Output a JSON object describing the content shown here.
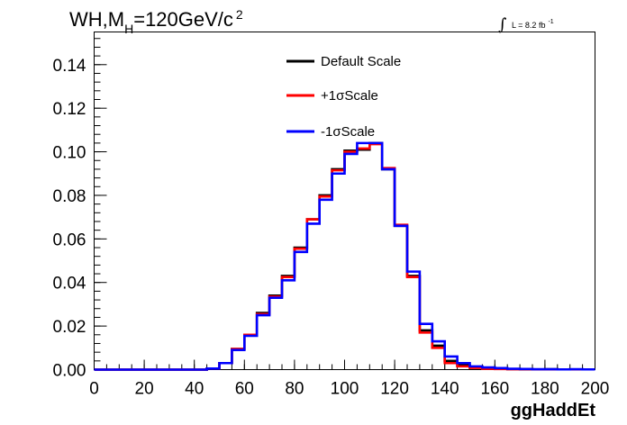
{
  "chart_data": {
    "type": "line",
    "title": {
      "main": "WH,M",
      "sub": "H",
      "rest": "=120GeV/c",
      "sup": "2"
    },
    "lumi": {
      "integral": "∫",
      "label": "L = 8.2 fb",
      "sup": "-1"
    },
    "xlabel": "ggHaddEt",
    "ylabel": "",
    "xlim": [
      0,
      200
    ],
    "ylim": [
      0,
      0.155
    ],
    "xticks": [
      "0",
      "20",
      "40",
      "60",
      "80",
      "100",
      "120",
      "140",
      "160",
      "180",
      "200"
    ],
    "yticks": [
      "0.00",
      "0.02",
      "0.04",
      "0.06",
      "0.08",
      "0.10",
      "0.12",
      "0.14"
    ],
    "bin_edges": [
      0,
      5,
      10,
      15,
      20,
      25,
      30,
      35,
      40,
      45,
      50,
      55,
      60,
      65,
      70,
      75,
      80,
      85,
      90,
      95,
      100,
      105,
      110,
      115,
      120,
      125,
      130,
      135,
      140,
      145,
      150,
      155,
      160,
      165,
      170,
      175,
      180,
      185,
      190,
      195,
      200
    ],
    "legend_position": "top-center",
    "series": [
      {
        "name": "Default Scale",
        "color": "#000000",
        "values": [
          0,
          0,
          0,
          0,
          0,
          0,
          0,
          0,
          0,
          0.0005,
          0.003,
          0.0095,
          0.016,
          0.026,
          0.034,
          0.043,
          0.056,
          0.069,
          0.08,
          0.092,
          0.1005,
          0.101,
          0.104,
          0.092,
          0.066,
          0.043,
          0.018,
          0.011,
          0.004,
          0.002,
          0.001,
          0.0005,
          0.0004,
          0.0003,
          0.0002,
          0.0001,
          0.0002,
          0.0001,
          0.0001,
          0.0001
        ]
      },
      {
        "name": "+1σScale",
        "color": "#ff0000",
        "values": [
          0,
          0,
          0,
          0,
          0,
          0,
          0,
          0,
          0,
          0.0005,
          0.003,
          0.0095,
          0.016,
          0.0255,
          0.0335,
          0.0425,
          0.0555,
          0.069,
          0.0795,
          0.0915,
          0.1,
          0.1015,
          0.1035,
          0.0925,
          0.0665,
          0.0425,
          0.017,
          0.01,
          0.003,
          0.0015,
          0.0008,
          0.0004,
          0.0003,
          0.0002,
          0.0002,
          0.0001,
          0.0001,
          0.0001,
          0.0001,
          0.0001
        ]
      },
      {
        "name": "-1σScale",
        "color": "#0000ff",
        "values": [
          0,
          0,
          0,
          0,
          0,
          0,
          0,
          0,
          0,
          0.0005,
          0.003,
          0.009,
          0.0155,
          0.025,
          0.033,
          0.041,
          0.054,
          0.067,
          0.078,
          0.09,
          0.099,
          0.104,
          0.104,
          0.092,
          0.066,
          0.045,
          0.021,
          0.013,
          0.006,
          0.003,
          0.0015,
          0.001,
          0.0007,
          0.0004,
          0.0003,
          0.0002,
          0.0002,
          0.0001,
          0.0002,
          0.0001
        ]
      }
    ]
  }
}
